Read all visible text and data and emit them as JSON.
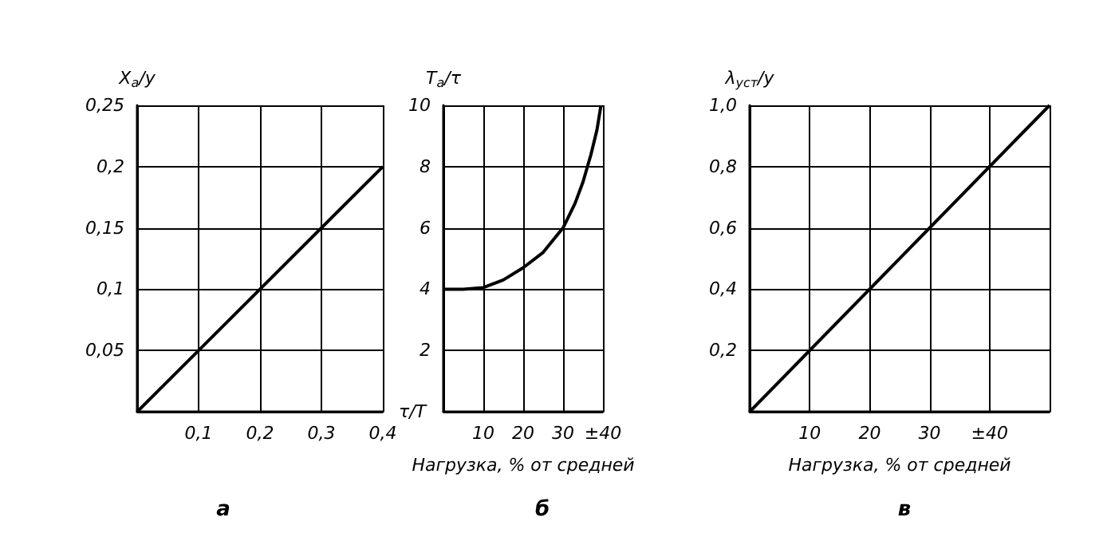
{
  "chart_data": [
    {
      "type": "line",
      "title": "а",
      "xlabel": "τ/T",
      "ylabel": "X$_{а}$/y",
      "series": [
        {
          "color": "#000000",
          "x": [
            0,
            0.4
          ],
          "values": [
            0,
            0.2
          ]
        }
      ],
      "xlim": [
        0,
        0.4
      ],
      "ylim": [
        0,
        0.25
      ],
      "xticks": [
        {
          "value": 0,
          "label": null
        },
        {
          "value": 0.1,
          "label": "0,1"
        },
        {
          "value": 0.2,
          "label": "0,2"
        },
        {
          "value": 0.3,
          "label": "0,3"
        },
        {
          "value": 0.4,
          "label": "0,4"
        }
      ],
      "yticks": [
        {
          "value": 0,
          "label": null
        },
        {
          "value": 0.05,
          "label": "0,05"
        },
        {
          "value": 0.1,
          "label": "0,1"
        },
        {
          "value": 0.15,
          "label": "0,15"
        },
        {
          "value": 0.2,
          "label": "0,2"
        },
        {
          "value": 0.25,
          "label": "0,25"
        }
      ],
      "grid": true,
      "marker": "none",
      "line_style": "solid"
    },
    {
      "type": "line",
      "title": "б",
      "xlabel": "Нагрузка, % от средней",
      "ylabel": "T$_{а}$/τ",
      "series": [
        {
          "color": "#000000",
          "x": [
            0,
            5,
            10,
            15,
            20,
            25,
            30,
            33,
            35,
            37,
            38.5,
            39.5
          ],
          "values": [
            4,
            4,
            4.05,
            4.3,
            4.7,
            5.2,
            6,
            6.8,
            7.5,
            8.4,
            9.2,
            10
          ]
        }
      ],
      "xlim": [
        0,
        40
      ],
      "ylim": [
        0,
        10
      ],
      "xticks": [
        {
          "value": 0,
          "label": null
        },
        10,
        20,
        30,
        {
          "value": 40,
          "label": "±40"
        }
      ],
      "yticks": [
        {
          "value": 0,
          "label": null
        },
        2,
        4,
        6,
        8,
        10
      ],
      "grid": true,
      "marker": "none",
      "line_style": "solid"
    },
    {
      "type": "line",
      "title": "в",
      "xlabel": "Нагрузка, % от средней",
      "ylabel": "λ$_{уст}$/y",
      "series": [
        {
          "color": "#000000",
          "x": [
            0,
            50
          ],
          "values": [
            0,
            1
          ]
        }
      ],
      "xlim": [
        0,
        50
      ],
      "ylim": [
        0,
        1
      ],
      "xticks": [
        {
          "value": 0,
          "label": null
        },
        10,
        20,
        30,
        {
          "value": 40,
          "label": "±40"
        },
        {
          "value": 50,
          "label": null
        }
      ],
      "yticks": [
        {
          "value": 0,
          "label": null
        },
        {
          "value": 0.2,
          "label": "0,2"
        },
        {
          "value": 0.4,
          "label": "0,4"
        },
        {
          "value": 0.6,
          "label": "0,6"
        },
        {
          "value": 0.8,
          "label": "0,8"
        },
        {
          "value": 1,
          "label": "1,0"
        }
      ],
      "grid": true,
      "marker": "none",
      "line_style": "solid"
    }
  ]
}
